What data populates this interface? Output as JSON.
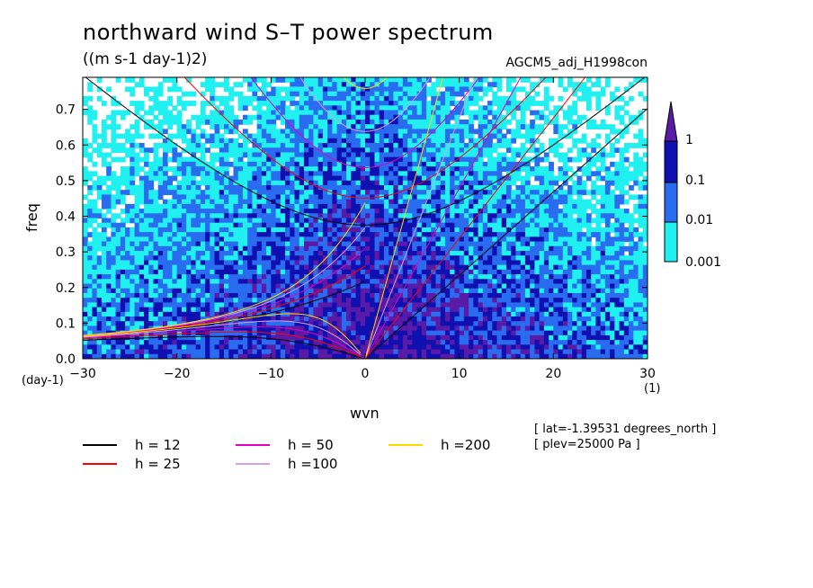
{
  "header": {
    "title": "northward wind S–T power spectrum",
    "units": "((m s-1 day-1)2)",
    "run_name": "AGCM5_adj_H1998con"
  },
  "axes": {
    "ylabel": "freq",
    "xlabel": "wvn",
    "y_unit": "(day-1)",
    "x_unit": "(1)"
  },
  "info": {
    "lat": "[ lat=-1.39531 degrees_north ]",
    "plev": "[ plev=25000 Pa ]"
  },
  "legend": [
    {
      "label": "h = 12",
      "color": "#000000"
    },
    {
      "label": "h = 25",
      "color": "#ff0000"
    },
    {
      "label": "h = 50",
      "color": "#e000c0"
    },
    {
      "label": "h =100",
      "color": "#d8a0e8"
    },
    {
      "label": "h =200",
      "color": "#ffd800"
    }
  ],
  "colorbar": {
    "labels": [
      "1",
      "0.1",
      "0.01",
      "0.001"
    ],
    "colors": [
      "#5a1aa8",
      "#1010b0",
      "#2a6cf0",
      "#20f0f0"
    ]
  },
  "chart_data": {
    "type": "heatmap",
    "title": "northward wind S–T power spectrum",
    "subtitle": "((m s-1 day-1)2)",
    "xlabel": "wvn",
    "ylabel": "freq",
    "xlim": [
      -30,
      30
    ],
    "ylim": [
      0,
      0.79
    ],
    "xticks": [
      -30,
      -20,
      -10,
      0,
      10,
      20,
      30
    ],
    "yticks": [
      0.0,
      0.1,
      0.2,
      0.3,
      0.4,
      0.5,
      0.6,
      0.7
    ],
    "ytick_labels": [
      "0.0",
      "0.1",
      "0.2",
      "0.3",
      "0.4",
      "0.5",
      "0.6",
      "0.7"
    ],
    "color_levels": [
      0.001,
      0.01,
      0.1,
      1
    ],
    "log_scale_colors": true,
    "dispersion_curves": {
      "equivalent_depths": [
        12,
        25,
        50,
        100,
        200
      ],
      "types": [
        "kelvin",
        "mixed_rossby_gravity",
        "n1_inertia_gravity",
        "n1_equatorial_rossby"
      ]
    }
  }
}
